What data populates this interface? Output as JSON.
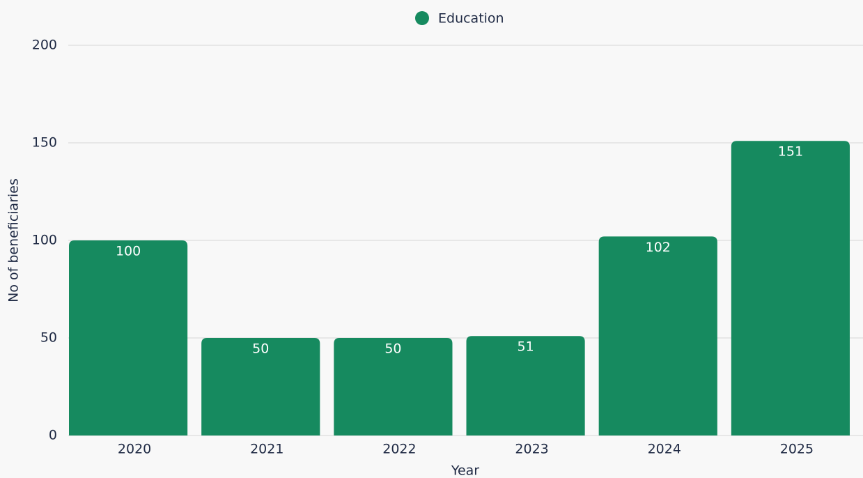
{
  "chart_data": {
    "type": "bar",
    "categories": [
      "2020",
      "2021",
      "2022",
      "2023",
      "2024",
      "2025"
    ],
    "series": [
      {
        "name": "Education",
        "color": "#168a5f",
        "values": [
          100,
          50,
          50,
          51,
          102,
          151
        ]
      }
    ],
    "xlabel": "Year",
    "ylabel": "No of beneficiaries",
    "ylim": [
      0,
      200
    ],
    "yticks": [
      0,
      50,
      100,
      150,
      200
    ],
    "grid": true,
    "legend": "top"
  }
}
